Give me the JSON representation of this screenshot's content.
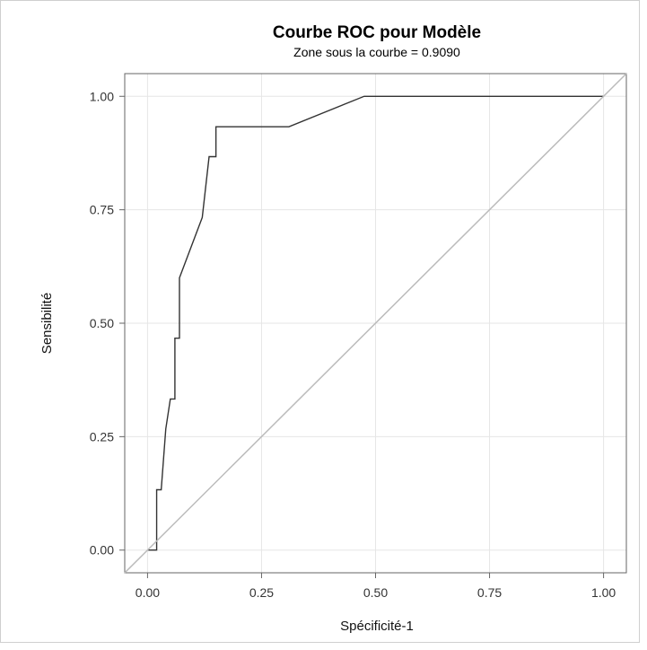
{
  "chart_data": {
    "type": "line",
    "title": "Courbe ROC pour Modèle",
    "subtitle": "Zone sous la courbe = 0.9090",
    "xlabel": "Spécificité-1",
    "ylabel": "Sensibilité",
    "xlim": [
      -0.05,
      1.05
    ],
    "ylim": [
      -0.05,
      1.05
    ],
    "xticks": [
      0.0,
      0.25,
      0.5,
      0.75,
      1.0
    ],
    "xtick_labels": [
      "0.00",
      "0.25",
      "0.50",
      "0.75",
      "1.00"
    ],
    "yticks": [
      0.0,
      0.25,
      0.5,
      0.75,
      1.0
    ],
    "ytick_labels": [
      "0.00",
      "0.25",
      "0.50",
      "0.75",
      "1.00"
    ],
    "grid": true,
    "legend": false,
    "series": [
      {
        "x": [
          0.0,
          0.02,
          0.02,
          0.03,
          0.035,
          0.04,
          0.04,
          0.05,
          0.05,
          0.06,
          0.06,
          0.07,
          0.07,
          0.12,
          0.135,
          0.135,
          0.15,
          0.15,
          0.31,
          0.475,
          1.0
        ],
        "y": [
          0.0,
          0.0,
          0.133,
          0.133,
          0.2,
          0.267,
          0.267,
          0.333,
          0.333,
          0.333,
          0.467,
          0.467,
          0.6,
          0.733,
          0.867,
          0.867,
          0.867,
          0.933,
          0.933,
          1.0,
          1.0
        ],
        "color": "#333333"
      },
      {
        "x": [
          -0.05,
          1.05
        ],
        "y": [
          -0.05,
          1.05
        ],
        "color": "#bbbbbb"
      }
    ]
  }
}
